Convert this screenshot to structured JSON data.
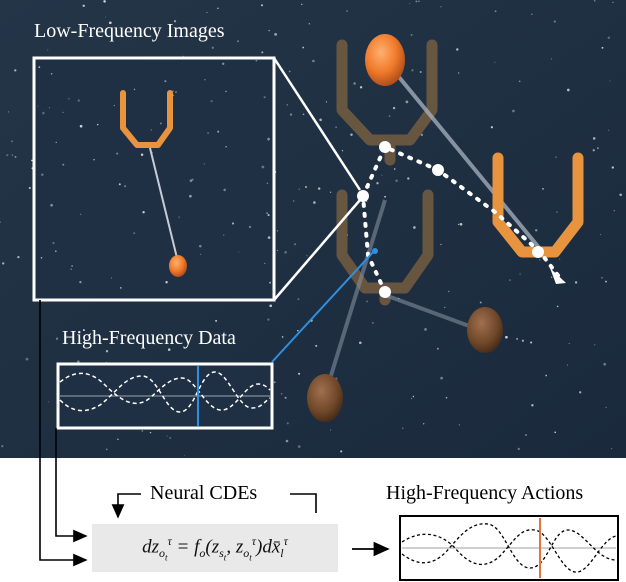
{
  "labels": {
    "low_freq_images": "Low-Frequency Images",
    "high_freq_data": "High-Frequency Data",
    "neural_cdes": "Neural CDEs",
    "high_freq_actions": "High-Frequency Actions"
  },
  "equation": {
    "lhs": "dz",
    "rhs_f": "= f",
    "rhs_args_open": "(z",
    "rhs_sep": ", z",
    "rhs_close": ")d",
    "rhs_x": "x̄",
    "sup_tau": "τ",
    "sub_o": "o",
    "sub_t": "t",
    "sub_s": "s",
    "sub_l": "l"
  },
  "colors": {
    "scene_background": "#1e3045",
    "robot_gripper": "#e8943f",
    "ghost_gripper": "#6b5840",
    "ball_orange": "#f07a2a",
    "ball_brown": "#7a5230",
    "highlight_line": "#2f8fe0",
    "action_marker": "#e8703a"
  }
}
